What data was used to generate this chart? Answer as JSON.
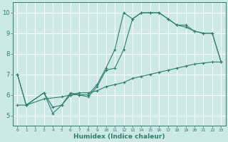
{
  "xlabel": "Humidex (Indice chaleur)",
  "bg_color": "#cce8e8",
  "grid_color": "#b0d4d4",
  "line_color": "#2e7d6e",
  "xlim": [
    -0.5,
    23.5
  ],
  "ylim": [
    4.5,
    10.5
  ],
  "xticks": [
    0,
    1,
    2,
    3,
    4,
    5,
    6,
    7,
    8,
    9,
    10,
    11,
    12,
    13,
    14,
    15,
    16,
    17,
    18,
    19,
    20,
    21,
    22,
    23
  ],
  "yticks": [
    5,
    6,
    7,
    8,
    9,
    10
  ],
  "series": [
    {
      "x": [
        0,
        1,
        3,
        4,
        5,
        6,
        7,
        8,
        9,
        10,
        11,
        12,
        13,
        14,
        15,
        16,
        17,
        18,
        19,
        20,
        21,
        22,
        23
      ],
      "y": [
        7.0,
        5.5,
        6.1,
        5.4,
        5.5,
        6.1,
        6.0,
        6.0,
        6.5,
        7.3,
        8.2,
        10.0,
        9.7,
        10.0,
        10.0,
        10.0,
        9.7,
        9.4,
        9.4,
        9.1,
        9.0,
        9.0,
        7.6
      ]
    },
    {
      "x": [
        0,
        1,
        3,
        4,
        5,
        6,
        7,
        8,
        9,
        10,
        11,
        12,
        13,
        14,
        15,
        16,
        17,
        18,
        19,
        20,
        21,
        22,
        23
      ],
      "y": [
        7.0,
        5.5,
        6.1,
        5.1,
        5.5,
        6.0,
        6.0,
        5.9,
        6.4,
        7.2,
        7.3,
        8.2,
        9.7,
        10.0,
        10.0,
        10.0,
        9.7,
        9.4,
        9.3,
        9.1,
        9.0,
        9.0,
        7.6
      ]
    },
    {
      "x": [
        0,
        1,
        3,
        5,
        6,
        7,
        8,
        9,
        10,
        11,
        12,
        13,
        14,
        15,
        16,
        17,
        18,
        19,
        20,
        21,
        22,
        23
      ],
      "y": [
        5.5,
        5.5,
        5.8,
        5.9,
        6.0,
        6.1,
        6.1,
        6.2,
        6.4,
        6.5,
        6.6,
        6.8,
        6.9,
        7.0,
        7.1,
        7.2,
        7.3,
        7.4,
        7.5,
        7.55,
        7.6,
        7.6
      ]
    }
  ]
}
